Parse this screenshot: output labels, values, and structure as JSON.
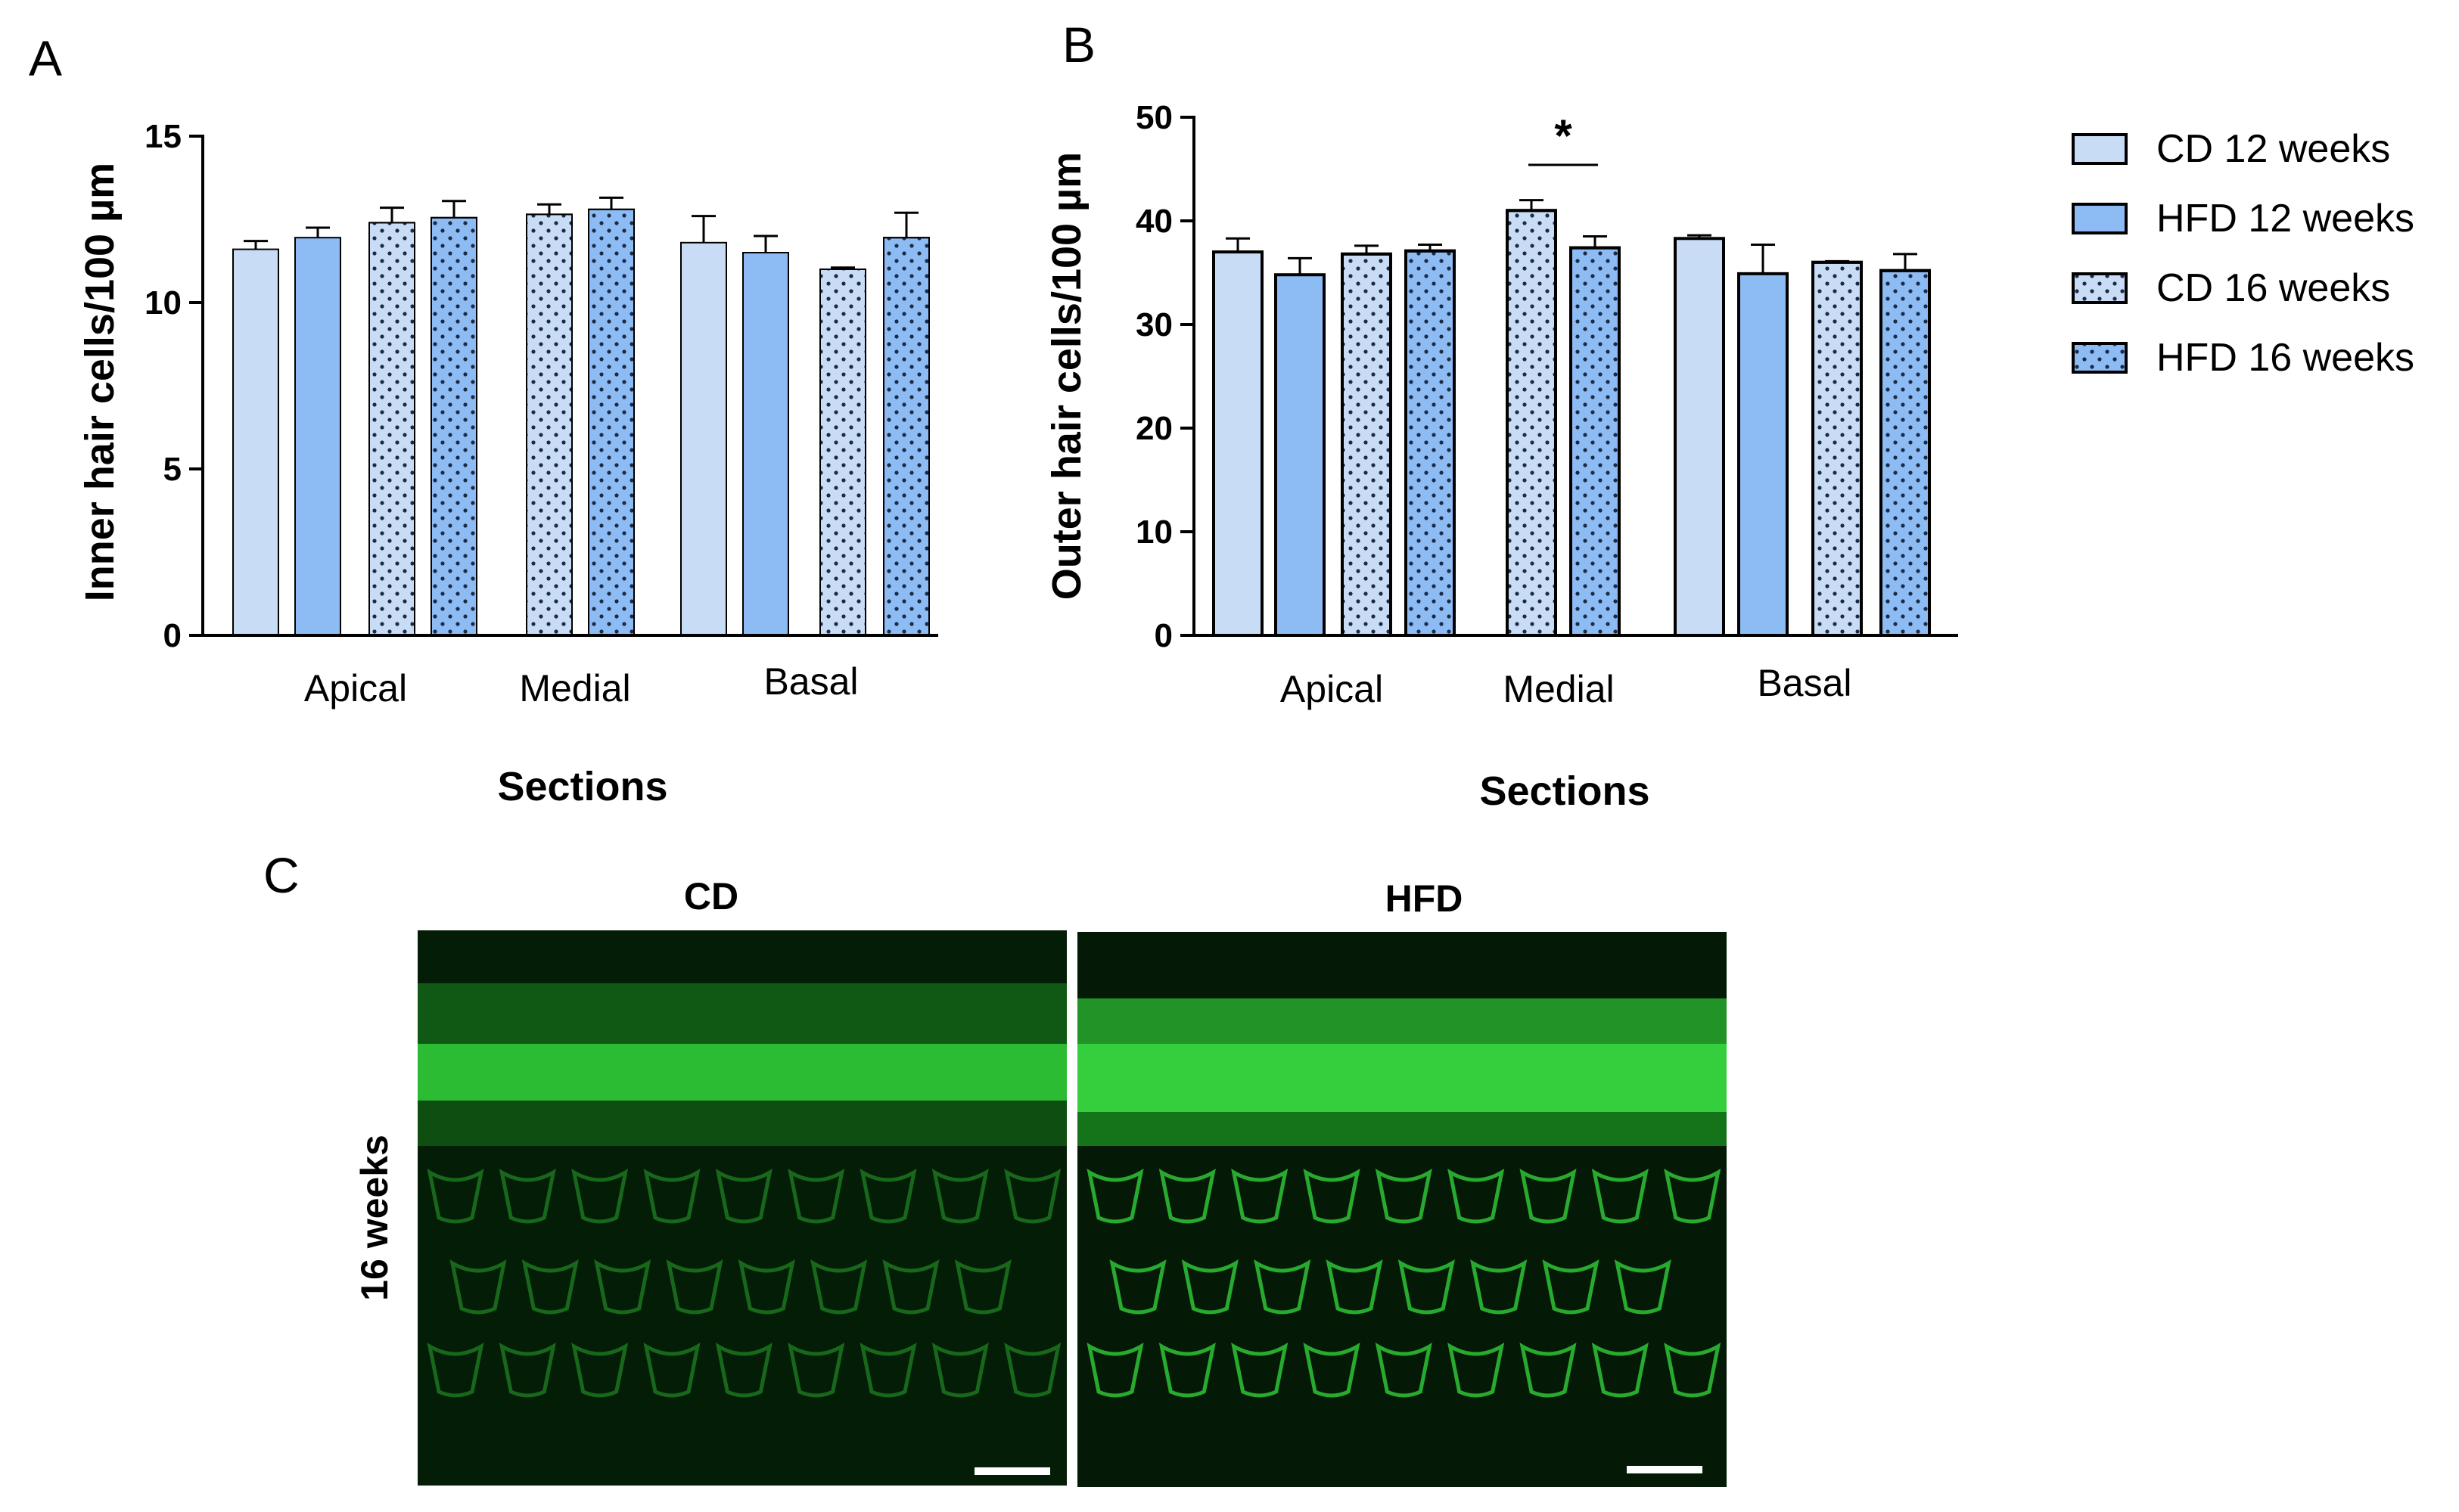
{
  "panels": {
    "a": "A",
    "b": "B",
    "c": "C"
  },
  "colors": {
    "cd": "#c9dcf6",
    "hfd": "#8dbbf4",
    "dots": "#1b2a45",
    "micro_bright": "#3dff4a",
    "micro_dark": "#032006"
  },
  "chart_data": [
    {
      "type": "bar",
      "panel": "A",
      "categories": [
        "Apical",
        "Medial",
        "Basal"
      ],
      "xlabel": "Sections",
      "ylabel": "Inner hair cells/100 µm",
      "ylim": [
        0,
        15
      ],
      "yticks": [
        "0",
        "5",
        "10",
        "15"
      ],
      "series": [
        {
          "name": "CD 12 weeks",
          "values": [
            11.6,
            null,
            11.8
          ],
          "err": [
            0.25,
            null,
            0.8
          ]
        },
        {
          "name": "HFD 12 weeks",
          "values": [
            11.95,
            null,
            11.5
          ],
          "err": [
            0.3,
            null,
            0.5
          ]
        },
        {
          "name": "CD 16 weeks",
          "values": [
            12.4,
            12.65,
            11.0
          ],
          "err": [
            0.45,
            0.3,
            0.05
          ]
        },
        {
          "name": "HFD 16 weeks",
          "values": [
            12.55,
            12.8,
            11.95
          ],
          "err": [
            0.5,
            0.35,
            0.75
          ]
        }
      ]
    },
    {
      "type": "bar",
      "panel": "B",
      "categories": [
        "Apical",
        "Medial",
        "Basal"
      ],
      "xlabel": "Sections",
      "ylabel": "Outer hair cells/100 µm",
      "ylim": [
        0,
        50
      ],
      "yticks": [
        "0",
        "10",
        "20",
        "30",
        "40",
        "50"
      ],
      "significance": "*",
      "series": [
        {
          "name": "CD 12 weeks",
          "values": [
            37.0,
            null,
            38.3
          ],
          "err": [
            1.3,
            null,
            0.3
          ]
        },
        {
          "name": "HFD 12 weeks",
          "values": [
            34.8,
            null,
            34.9
          ],
          "err": [
            1.6,
            null,
            2.8
          ]
        },
        {
          "name": "CD 16 weeks",
          "values": [
            36.8,
            41.0,
            36.0
          ],
          "err": [
            0.8,
            1.0,
            0.1
          ]
        },
        {
          "name": "HFD 16 weeks",
          "values": [
            37.1,
            37.4,
            35.2
          ],
          "err": [
            0.6,
            1.1,
            1.6
          ]
        }
      ]
    }
  ],
  "legend": [
    "CD 12 weeks",
    "HFD 12 weeks",
    "CD 16 weeks",
    "HFD 16 weeks"
  ],
  "micrographs": {
    "titles": [
      "CD",
      "HFD"
    ],
    "row_label": "16 weeks"
  }
}
